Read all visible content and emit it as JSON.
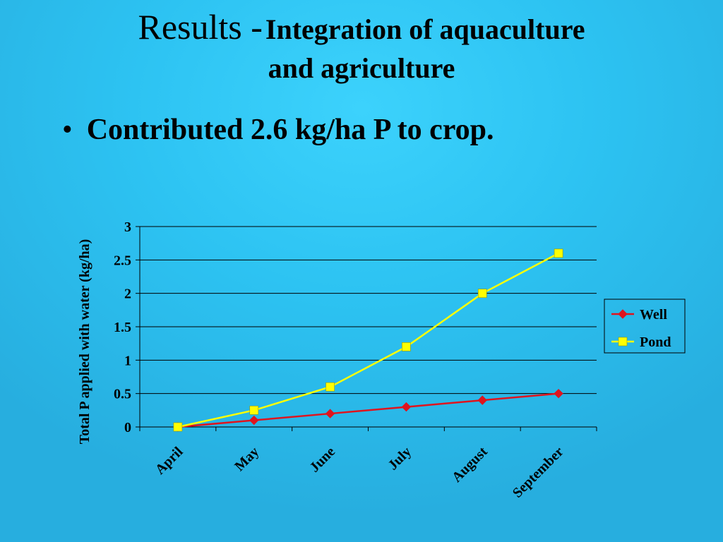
{
  "slide": {
    "title_main": "Results -",
    "title_sub_line1": "Integration of aquaculture",
    "title_sub_line2": "and agriculture",
    "bullet": "Contributed 2.6 kg/ha P to crop."
  },
  "colors": {
    "well": "#e0141e",
    "pond": "#ffff00"
  },
  "chart_data": {
    "type": "line",
    "title": "",
    "xlabel": "",
    "ylabel": "Total P applied with water (kg/ha)",
    "categories": [
      "April",
      "May",
      "June",
      "July",
      "August",
      "September"
    ],
    "ylim": [
      0,
      3
    ],
    "yticks": [
      "0",
      "0.5",
      "1",
      "1.5",
      "2",
      "2.5",
      "3"
    ],
    "grid": true,
    "legend_position": "right",
    "series": [
      {
        "name": "Well",
        "values": [
          0,
          0.1,
          0.2,
          0.3,
          0.4,
          0.5
        ],
        "marker": "diamond"
      },
      {
        "name": "Pond",
        "values": [
          0,
          0.25,
          0.6,
          1.2,
          2.0,
          2.6
        ],
        "marker": "square"
      }
    ]
  }
}
